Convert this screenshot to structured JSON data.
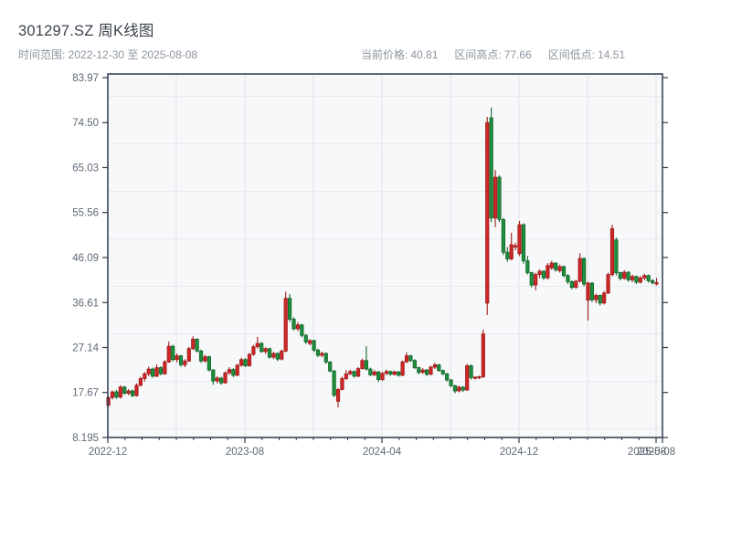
{
  "header": {
    "title": "301297.SZ 周K线图",
    "time_range": "时间范围: 2022-12-30 至 2025-08-08",
    "stats": [
      {
        "label": "当前价格:",
        "value": "40.81"
      },
      {
        "label": "区间高点:",
        "value": "77.66"
      },
      {
        "label": "区间低点:",
        "value": "14.51"
      }
    ]
  },
  "colors": {
    "up_fill": "#cf2626",
    "up_edge": "#9e1c1c",
    "down_fill": "#1d913c",
    "down_edge": "#136329",
    "spine": "#2c3b4e",
    "grid_h": "#e7eaee",
    "grid_v": "#e2e5e9",
    "plot_bg": "#f7f8fa",
    "tick_text": "#5d6876",
    "title_text": "#3a414b",
    "muted_text": "#8b94a0"
  },
  "chart_data": {
    "type": "candlestick",
    "title": "301297.SZ 周K线图",
    "symbol": "301297.SZ",
    "freq": "weekly",
    "start_date": "2022-12-30",
    "end_date": "2025-08-08",
    "current_price": 40.81,
    "range_high": 77.66,
    "range_low": 14.51,
    "up_means": "close >= open (red)",
    "down_means": "close < open (green)",
    "ylim": [
      8.195,
      84.75
    ],
    "grid": true,
    "y_ticks": [
      {
        "v": 83.97,
        "label": "83.97"
      },
      {
        "v": 74.5,
        "label": "74.50"
      },
      {
        "v": 65.03,
        "label": "65.03"
      },
      {
        "v": 55.56,
        "label": "55.56"
      },
      {
        "v": 46.09,
        "label": "46.09"
      },
      {
        "v": 36.61,
        "label": "36.61"
      },
      {
        "v": 27.14,
        "label": "27.14"
      },
      {
        "v": 17.67,
        "label": "17.67"
      },
      {
        "v": 8.195,
        "label": "8.195"
      }
    ],
    "x_ticks": [
      {
        "label": "2022-12"
      },
      {
        "label": "2023-08"
      },
      {
        "label": "2024-04"
      },
      {
        "label": "2024-12"
      },
      {
        "label": "2025-08"
      }
    ],
    "x_extra_label": "2025-08",
    "grid_y_values": [
      10,
      20,
      30,
      40,
      50,
      60,
      70,
      80
    ],
    "ohlc_format": [
      "open",
      "high",
      "low",
      "close"
    ],
    "ohlc": [
      [
        15.0,
        16.9,
        14.6,
        16.6
      ],
      [
        16.6,
        18.1,
        16.2,
        17.8
      ],
      [
        17.8,
        18.2,
        16.3,
        16.7
      ],
      [
        16.7,
        19.2,
        16.4,
        18.8
      ],
      [
        18.8,
        19.1,
        17.2,
        17.5
      ],
      [
        17.5,
        18.4,
        17.1,
        18.0
      ],
      [
        18.0,
        18.3,
        16.7,
        17.0
      ],
      [
        17.0,
        19.6,
        16.8,
        19.2
      ],
      [
        19.2,
        21.0,
        18.9,
        20.6
      ],
      [
        20.6,
        22.0,
        20.0,
        21.6
      ],
      [
        21.6,
        23.1,
        21.1,
        22.6
      ],
      [
        22.6,
        22.9,
        20.8,
        21.1
      ],
      [
        21.1,
        23.6,
        20.9,
        22.9
      ],
      [
        22.9,
        23.2,
        21.3,
        21.6
      ],
      [
        21.6,
        24.5,
        21.4,
        24.1
      ],
      [
        24.1,
        28.4,
        23.9,
        27.4
      ],
      [
        27.4,
        27.7,
        24.2,
        24.6
      ],
      [
        24.6,
        25.9,
        24.0,
        25.4
      ],
      [
        25.4,
        25.6,
        23.1,
        23.5
      ],
      [
        23.5,
        24.7,
        23.0,
        24.3
      ],
      [
        24.3,
        27.3,
        24.1,
        26.9
      ],
      [
        26.9,
        29.5,
        26.6,
        28.9
      ],
      [
        28.9,
        29.1,
        26.1,
        26.4
      ],
      [
        26.4,
        26.7,
        23.9,
        24.3
      ],
      [
        24.3,
        25.6,
        24.0,
        25.2
      ],
      [
        25.2,
        25.4,
        22.1,
        22.4
      ],
      [
        22.4,
        22.6,
        19.3,
        20.1
      ],
      [
        20.1,
        21.1,
        19.6,
        20.7
      ],
      [
        20.7,
        21.0,
        19.3,
        19.7
      ],
      [
        19.7,
        22.1,
        19.5,
        21.8
      ],
      [
        21.8,
        23.0,
        21.4,
        22.5
      ],
      [
        22.5,
        22.8,
        20.9,
        21.3
      ],
      [
        21.3,
        23.7,
        21.1,
        23.4
      ],
      [
        23.4,
        25.0,
        23.1,
        24.6
      ],
      [
        24.6,
        24.9,
        23.0,
        23.3
      ],
      [
        23.3,
        26.0,
        23.1,
        25.7
      ],
      [
        25.7,
        27.7,
        25.4,
        27.3
      ],
      [
        27.3,
        29.4,
        26.9,
        28.0
      ],
      [
        28.0,
        28.3,
        26.0,
        26.3
      ],
      [
        26.3,
        27.2,
        25.8,
        26.9
      ],
      [
        26.9,
        27.1,
        24.8,
        25.1
      ],
      [
        25.1,
        26.2,
        24.7,
        25.9
      ],
      [
        25.9,
        26.1,
        24.3,
        24.7
      ],
      [
        24.7,
        26.7,
        24.4,
        26.4
      ],
      [
        26.4,
        38.9,
        26.1,
        37.5
      ],
      [
        37.5,
        38.4,
        32.6,
        33.1
      ],
      [
        33.1,
        33.5,
        30.7,
        31.1
      ],
      [
        31.1,
        32.5,
        30.6,
        31.9
      ],
      [
        31.9,
        32.1,
        29.3,
        29.7
      ],
      [
        29.7,
        30.0,
        27.9,
        28.3
      ],
      [
        28.0,
        28.9,
        27.6,
        28.6
      ],
      [
        28.6,
        28.8,
        26.2,
        26.6
      ],
      [
        26.6,
        26.9,
        25.1,
        25.5
      ],
      [
        25.5,
        26.3,
        25.1,
        25.9
      ],
      [
        25.9,
        26.1,
        23.7,
        24.1
      ],
      [
        24.1,
        24.3,
        21.9,
        22.2
      ],
      [
        22.2,
        22.4,
        16.7,
        17.1
      ],
      [
        15.8,
        18.6,
        14.51,
        18.3
      ],
      [
        18.3,
        21.0,
        18.1,
        20.6
      ],
      [
        20.6,
        22.4,
        20.3,
        21.6
      ],
      [
        21.6,
        22.5,
        21.3,
        22.1
      ],
      [
        22.1,
        22.3,
        20.8,
        21.1
      ],
      [
        21.1,
        23.0,
        20.9,
        22.7
      ],
      [
        22.7,
        24.8,
        22.5,
        24.4
      ],
      [
        24.4,
        27.4,
        22.3,
        22.6
      ],
      [
        22.6,
        22.9,
        21.1,
        21.4
      ],
      [
        21.4,
        22.4,
        21.1,
        22.0
      ],
      [
        22.0,
        22.2,
        19.9,
        20.4
      ],
      [
        20.4,
        22.0,
        20.1,
        21.7
      ],
      [
        21.7,
        22.5,
        21.3,
        22.1
      ],
      [
        22.1,
        22.3,
        21.2,
        21.5
      ],
      [
        21.5,
        22.3,
        21.2,
        22.0
      ],
      [
        22.0,
        22.2,
        21.0,
        21.3
      ],
      [
        21.3,
        24.4,
        21.1,
        24.1
      ],
      [
        24.1,
        26.1,
        23.9,
        25.4
      ],
      [
        25.4,
        25.6,
        24.1,
        24.4
      ],
      [
        24.4,
        24.7,
        22.6,
        22.9
      ],
      [
        22.9,
        23.1,
        21.5,
        21.9
      ],
      [
        21.9,
        22.8,
        21.6,
        22.4
      ],
      [
        22.4,
        22.6,
        21.1,
        21.5
      ],
      [
        21.5,
        23.3,
        21.3,
        23.0
      ],
      [
        23.0,
        23.9,
        22.6,
        23.5
      ],
      [
        23.5,
        23.7,
        22.0,
        22.3
      ],
      [
        22.3,
        22.5,
        21.3,
        21.6
      ],
      [
        21.6,
        21.8,
        20.0,
        20.3
      ],
      [
        20.3,
        20.5,
        18.8,
        19.1
      ],
      [
        19.1,
        19.3,
        17.5,
        18.0
      ],
      [
        18.0,
        19.1,
        17.7,
        18.8
      ],
      [
        18.8,
        19.0,
        17.8,
        18.2
      ],
      [
        18.2,
        23.7,
        18.0,
        23.3
      ],
      [
        23.3,
        23.6,
        20.4,
        20.8
      ],
      [
        20.7,
        21.1,
        20.4,
        20.9
      ],
      [
        20.8,
        21.2,
        20.5,
        21.0
      ],
      [
        21.0,
        30.9,
        20.7,
        30.0
      ],
      [
        36.5,
        75.7,
        34.0,
        74.5
      ],
      [
        75.5,
        77.66,
        53.5,
        54.4
      ],
      [
        54.4,
        64.5,
        52.5,
        63.0
      ],
      [
        63.0,
        63.4,
        53.6,
        54.1
      ],
      [
        54.1,
        54.4,
        46.6,
        47.2
      ],
      [
        47.2,
        48.3,
        45.2,
        45.8
      ],
      [
        45.8,
        51.3,
        45.5,
        48.8
      ],
      [
        48.3,
        49.2,
        47.6,
        48.6
      ],
      [
        46.9,
        53.8,
        46.4,
        53.0
      ],
      [
        53.0,
        53.3,
        44.8,
        45.4
      ],
      [
        45.4,
        46.4,
        42.5,
        42.9
      ],
      [
        42.9,
        43.1,
        39.8,
        40.3
      ],
      [
        40.3,
        42.9,
        39.2,
        42.5
      ],
      [
        42.5,
        43.6,
        41.7,
        43.2
      ],
      [
        43.2,
        43.4,
        41.4,
        41.8
      ],
      [
        41.8,
        44.9,
        41.5,
        44.4
      ],
      [
        43.9,
        45.4,
        43.5,
        44.9
      ],
      [
        44.9,
        45.1,
        43.1,
        43.5
      ],
      [
        43.3,
        44.6,
        42.9,
        44.2
      ],
      [
        44.2,
        44.4,
        41.9,
        42.3
      ],
      [
        42.3,
        42.6,
        40.5,
        41.0
      ],
      [
        41.0,
        41.3,
        39.4,
        39.8
      ],
      [
        39.8,
        41.4,
        39.5,
        41.1
      ],
      [
        41.1,
        47.0,
        40.8,
        45.9
      ],
      [
        45.9,
        46.1,
        40.0,
        40.5
      ],
      [
        37.1,
        41.0,
        32.8,
        40.7
      ],
      [
        40.7,
        40.9,
        36.7,
        37.2
      ],
      [
        37.2,
        38.5,
        36.5,
        38.1
      ],
      [
        38.1,
        38.3,
        36.0,
        36.5
      ],
      [
        36.5,
        39.0,
        36.2,
        38.6
      ],
      [
        38.6,
        42.9,
        38.4,
        42.5
      ],
      [
        42.5,
        53.0,
        42.1,
        52.2
      ],
      [
        49.8,
        50.3,
        42.3,
        42.9
      ],
      [
        42.9,
        43.1,
        41.3,
        41.7
      ],
      [
        41.7,
        43.4,
        41.4,
        43.0
      ],
      [
        43.0,
        43.2,
        41.0,
        41.4
      ],
      [
        41.4,
        42.5,
        40.9,
        42.1
      ],
      [
        42.1,
        42.3,
        40.5,
        40.9
      ],
      [
        40.9,
        42.2,
        40.6,
        41.8
      ],
      [
        41.8,
        42.7,
        41.3,
        42.3
      ],
      [
        42.3,
        42.5,
        40.8,
        41.2
      ],
      [
        41.2,
        41.6,
        40.4,
        40.8
      ],
      [
        40.5,
        41.8,
        40.2,
        40.81
      ]
    ]
  }
}
